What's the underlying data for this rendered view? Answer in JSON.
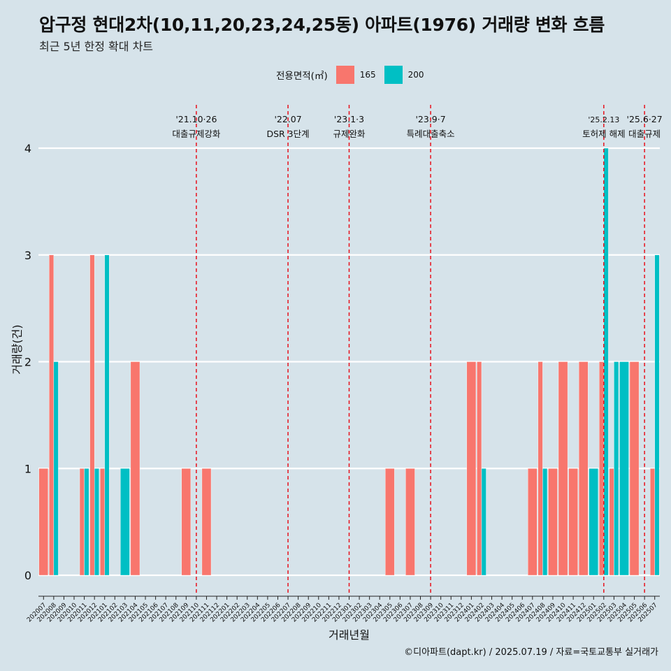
{
  "header": {
    "title": "압구정 현대2차(10,11,20,23,24,25동) 아파트(1976) 거래량 변화 흐름",
    "subtitle": "최근 5년 한정 확대 차트"
  },
  "legend": {
    "title": "전용면적(㎡)",
    "items": [
      {
        "label": "165",
        "color": "#f8766d"
      },
      {
        "label": "200",
        "color": "#00bfc4"
      }
    ]
  },
  "caption": "©디아파트(dapt.kr) / 2025.07.19 / 자료=국토교통부 실거래가",
  "chart_data": {
    "type": "bar",
    "xlabel": "거래년월",
    "ylabel": "거래량(건)",
    "ylim": [
      0,
      4
    ],
    "yticks": [
      0,
      1,
      2,
      3,
      4
    ],
    "grid": true,
    "legend_position": "top",
    "categories": [
      "202007",
      "202008",
      "202009",
      "202010",
      "202011",
      "202012",
      "202101",
      "202102",
      "202103",
      "202104",
      "202105",
      "202106",
      "202107",
      "202108",
      "202109",
      "202110",
      "202111",
      "202112",
      "202201",
      "202202",
      "202203",
      "202204",
      "202205",
      "202206",
      "202207",
      "202208",
      "202209",
      "202210",
      "202211",
      "202212",
      "202301",
      "202302",
      "202303",
      "202304",
      "202305",
      "202306",
      "202307",
      "202308",
      "202309",
      "202310",
      "202311",
      "202312",
      "202401",
      "202402",
      "202403",
      "202404",
      "202405",
      "202406",
      "202407",
      "202408",
      "202409",
      "202410",
      "202411",
      "202412",
      "202501",
      "202502",
      "202503",
      "202504",
      "202505",
      "202506",
      "202507"
    ],
    "series": [
      {
        "name": "165",
        "color": "#f8766d",
        "values": [
          1,
          3,
          0,
          0,
          1,
          3,
          1,
          0,
          0,
          2,
          0,
          0,
          0,
          0,
          1,
          0,
          1,
          0,
          0,
          0,
          0,
          0,
          0,
          0,
          0,
          0,
          0,
          0,
          0,
          0,
          0,
          0,
          0,
          0,
          1,
          0,
          1,
          0,
          0,
          0,
          0,
          0,
          2,
          2,
          0,
          0,
          0,
          0,
          1,
          2,
          1,
          2,
          1,
          2,
          0,
          2,
          1,
          0,
          2,
          0,
          1
        ]
      },
      {
        "name": "200",
        "color": "#00bfc4",
        "values": [
          0,
          2,
          0,
          0,
          1,
          1,
          3,
          0,
          1,
          0,
          0,
          0,
          0,
          0,
          0,
          0,
          0,
          0,
          0,
          0,
          0,
          0,
          0,
          0,
          0,
          0,
          0,
          0,
          0,
          0,
          0,
          0,
          0,
          0,
          0,
          0,
          0,
          0,
          0,
          0,
          0,
          0,
          0,
          1,
          0,
          0,
          0,
          0,
          0,
          1,
          0,
          0,
          0,
          0,
          1,
          4,
          2,
          2,
          0,
          0,
          3
        ]
      }
    ],
    "annotations": [
      {
        "date": "'21.10·26",
        "label": "대출규제강화",
        "at": "202110"
      },
      {
        "date": "'22.07",
        "label": "DSR 3단계",
        "at": "202207"
      },
      {
        "date": "'23.1·3",
        "label": "규제완화",
        "at": "202301"
      },
      {
        "date": "'23.9·7",
        "label": "특례대출축소",
        "at": "202309"
      },
      {
        "date": "'25.2.13",
        "label": "토허제 해제",
        "at": "202502"
      },
      {
        "date": "'25.6·27",
        "label": "대출규제",
        "at": "202506"
      }
    ]
  }
}
